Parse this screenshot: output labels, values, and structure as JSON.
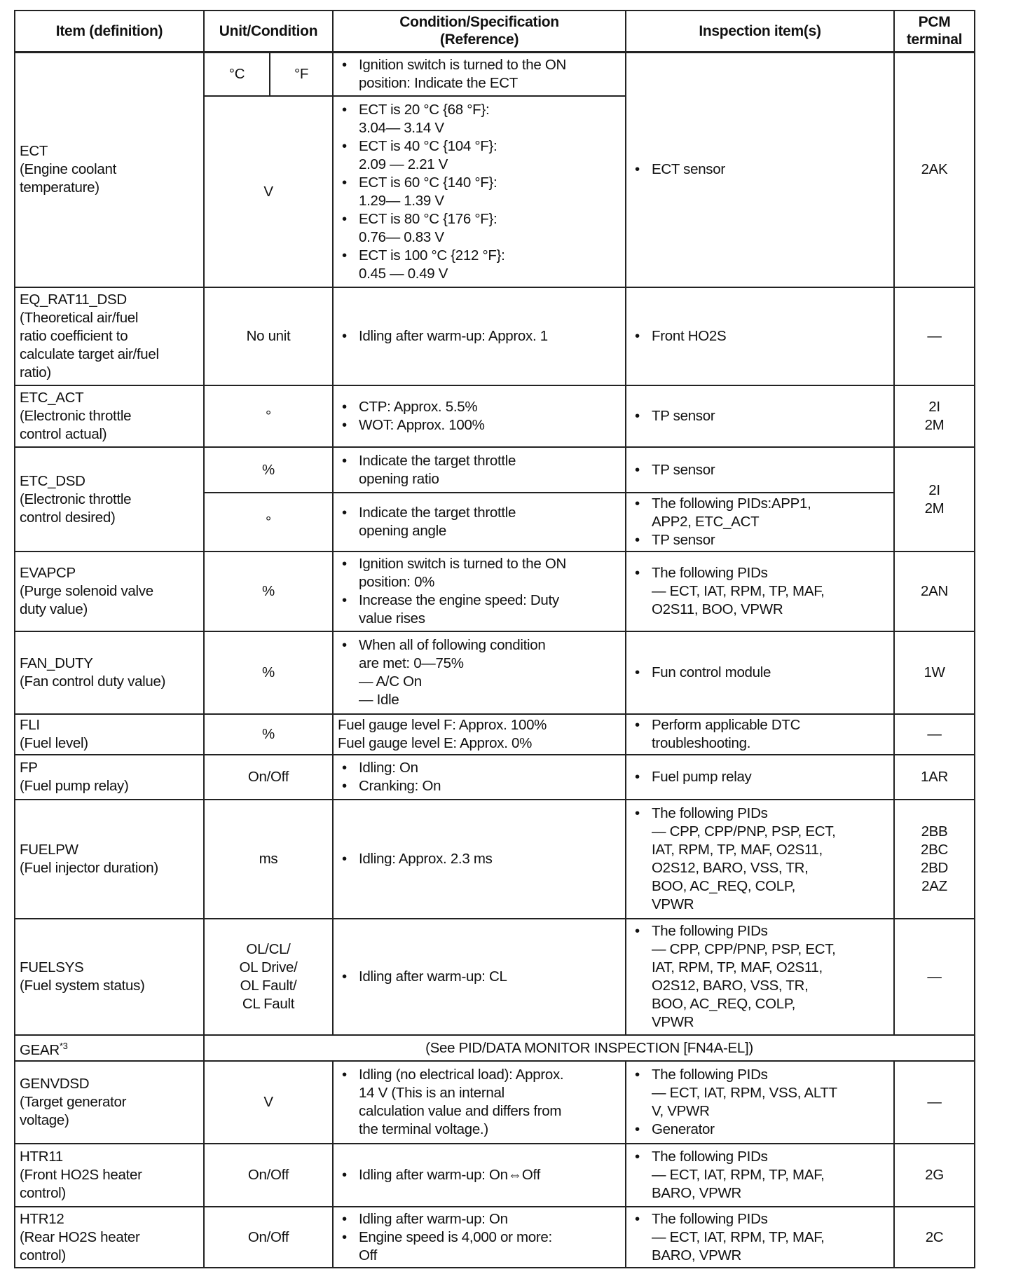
{
  "headers": [
    "Item (definition)",
    "Unit/Condition",
    "Condition/Specification\n(Reference)",
    "Inspection item(s)",
    "PCM\nterminal"
  ],
  "rows": [
    {
      "item": "ECT\n(Engine coolant\ntemperature)",
      "units": [
        "°C",
        "°F"
      ],
      "unit2": "V",
      "cond": [
        {
          "b": "Ignition switch is turned to the ON\nposition: Indicate the ECT"
        }
      ],
      "cond2": [
        {
          "b": "ECT is 20 °C {68 °F}:\n3.04— 3.14 V"
        },
        {
          "b": "ECT is 40 °C {104 °F}:\n2.09 — 2.21 V"
        },
        {
          "b": "ECT is 60 °C {140 °F}:\n1.29— 1.39 V"
        },
        {
          "b": "ECT is 80 °C {176 °F}:\n0.76— 0.83 V"
        },
        {
          "b": "ECT is 100 °C {212 °F}:\n0.45 — 0.49 V"
        }
      ],
      "insp": [
        {
          "b": "ECT sensor"
        }
      ],
      "pcm": "2AK"
    },
    {
      "item": "EQ_RAT11_DSD\n(Theoretical air/fuel\nratio coefficient to\ncalculate target air/fuel\nratio)",
      "unit": "No unit",
      "cond": [
        {
          "b": "Idling after warm-up: Approx. 1"
        }
      ],
      "insp": [
        {
          "b": "Front HO2S"
        }
      ],
      "pcm": "—"
    },
    {
      "item": "ETC_ACT\n(Electronic throttle\ncontrol actual)",
      "unit": "°",
      "cond": [
        {
          "b": "CTP: Approx. 5.5%"
        },
        {
          "b": "WOT: Approx. 100%"
        }
      ],
      "insp": [
        {
          "b": "TP sensor"
        }
      ],
      "pcm": "2I\n2M"
    },
    {
      "item": "ETC_DSD\n(Electronic throttle\ncontrol desired)",
      "unit": "%",
      "cond": [
        {
          "b": "Indicate the target throttle\nopening ratio"
        }
      ],
      "insp": [
        {
          "b": "TP sensor"
        }
      ],
      "unit2": "°",
      "cond2": [
        {
          "b": "Indicate the target throttle\nopening angle"
        }
      ],
      "insp2": [
        {
          "b": "The following PIDs:APP1,\nAPP2, ETC_ACT"
        },
        {
          "b": "TP sensor"
        }
      ],
      "pcm": "2I\n2M"
    },
    {
      "item": "EVAPCP\n(Purge solenoid valve\nduty value)",
      "unit": "%",
      "cond": [
        {
          "b": "Ignition switch is turned to the ON\nposition: 0%"
        },
        {
          "b": "Increase the engine speed: Duty\nvalue rises"
        }
      ],
      "insp": [
        {
          "b": "The following PIDs\n— ECT, IAT, RPM, TP, MAF,\n   O2S11, BOO, VPWR"
        }
      ],
      "pcm": "2AN"
    },
    {
      "item": "FAN_DUTY\n(Fan control duty value)",
      "unit": "%",
      "cond": [
        {
          "b": "When all of following condition\nare met: 0—75%\n— A/C On\n— Idle"
        }
      ],
      "insp": [
        {
          "b": "Fun control module"
        }
      ],
      "pcm": "1W"
    },
    {
      "item": "FLI\n(Fuel level)",
      "unit": "%",
      "cond": [
        {
          "p": "Fuel gauge level F: Approx. 100%\nFuel gauge level E: Approx. 0%"
        }
      ],
      "insp": [
        {
          "b": "Perform applicable DTC\ntroubleshooting."
        }
      ],
      "pcm": "—"
    },
    {
      "item": "FP\n(Fuel pump relay)",
      "unit": "On/Off",
      "cond": [
        {
          "b": "Idling: On"
        },
        {
          "b": "Cranking: On"
        }
      ],
      "insp": [
        {
          "b": "Fuel pump relay"
        }
      ],
      "pcm": "1AR"
    },
    {
      "item": "FUELPW\n(Fuel injector duration)",
      "unit": "ms",
      "cond": [
        {
          "b": "Idling: Approx. 2.3 ms"
        }
      ],
      "insp": [
        {
          "b": "The following PIDs\n— CPP, CPP/PNP, PSP, ECT,\n   IAT, RPM, TP, MAF, O2S11,\n   O2S12, BARO, VSS, TR,\n   BOO, AC_REQ, COLP,\n   VPWR"
        }
      ],
      "pcm": "2BB\n2BC\n2BD\n2AZ"
    },
    {
      "item": "FUELSYS\n(Fuel system status)",
      "unit": "OL/CL/\nOL Drive/\nOL Fault/\nCL Fault",
      "cond": [
        {
          "b": "Idling after warm-up: CL"
        }
      ],
      "insp": [
        {
          "b": "The following PIDs\n— CPP, CPP/PNP, PSP, ECT,\n   IAT, RPM, TP, MAF, O2S11,\n   O2S12, BARO, VSS, TR,\n   BOO, AC_REQ, COLP,\n   VPWR"
        }
      ],
      "pcm": "—"
    },
    {
      "item": "GEAR",
      "sup": "*3",
      "span": "(See PID/DATA MONITOR INSPECTION [FN4A-EL])"
    },
    {
      "item": "GENVDSD\n(Target generator\nvoltage)",
      "unit": "V",
      "cond": [
        {
          "b": "Idling (no electrical load): Approx.\n14 V (This is an internal\ncalculation value and differs from\nthe terminal voltage.)"
        }
      ],
      "insp": [
        {
          "b": "The following PIDs\n— ECT, IAT, RPM, VSS, ALTT\n   V, VPWR"
        },
        {
          "b": "Generator"
        }
      ],
      "pcm": "—"
    },
    {
      "item": "HTR11\n(Front HO2S heater\ncontrol)",
      "unit": "On/Off",
      "cond": [
        {
          "b": "Idling after warm-up: On⇔Off"
        }
      ],
      "insp": [
        {
          "b": "The following PIDs\n— ECT, IAT, RPM, TP, MAF,\n   BARO, VPWR"
        }
      ],
      "pcm": "2G"
    },
    {
      "item": "HTR12\n(Rear HO2S heater\ncontrol)",
      "unit": "On/Off",
      "cond": [
        {
          "b": "Idling after warm-up: On"
        },
        {
          "b": "Engine speed is 4,000 or more:\nOff"
        }
      ],
      "insp": [
        {
          "b": "The following PIDs\n— ECT, IAT, RPM, TP, MAF,\n   BARO, VPWR"
        }
      ],
      "pcm": "2C"
    }
  ]
}
